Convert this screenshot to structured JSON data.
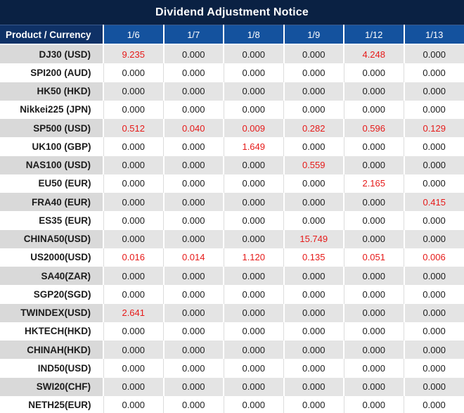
{
  "title": "Dividend Adjustment Notice",
  "colors": {
    "title_bar_bg": "#0a2143",
    "product_header_bg": "#0f3166",
    "date_header_bg": "#14529e",
    "stripe_name_bg": "#d9d9d9",
    "stripe_value_bg": "#e4e4e4",
    "adjustment_red": "#e61a19",
    "text_dark": "#1c1c1c",
    "header_text": "#ffffff"
  },
  "table": {
    "product_header": "Product / Currency",
    "date_columns": [
      "1/6",
      "1/7",
      "1/8",
      "1/9",
      "1/12",
      "1/13"
    ],
    "rows": [
      {
        "name": "DJ30 (USD)",
        "values": [
          "9.235",
          "0.000",
          "0.000",
          "0.000",
          "4.248",
          "0.000"
        ]
      },
      {
        "name": "SPI200 (AUD)",
        "values": [
          "0.000",
          "0.000",
          "0.000",
          "0.000",
          "0.000",
          "0.000"
        ]
      },
      {
        "name": "HK50 (HKD)",
        "values": [
          "0.000",
          "0.000",
          "0.000",
          "0.000",
          "0.000",
          "0.000"
        ]
      },
      {
        "name": "Nikkei225 (JPN)",
        "values": [
          "0.000",
          "0.000",
          "0.000",
          "0.000",
          "0.000",
          "0.000"
        ]
      },
      {
        "name": "SP500 (USD)",
        "values": [
          "0.512",
          "0.040",
          "0.009",
          "0.282",
          "0.596",
          "0.129"
        ]
      },
      {
        "name": "UK100 (GBP)",
        "values": [
          "0.000",
          "0.000",
          "1.649",
          "0.000",
          "0.000",
          "0.000"
        ]
      },
      {
        "name": "NAS100 (USD)",
        "values": [
          "0.000",
          "0.000",
          "0.000",
          "0.559",
          "0.000",
          "0.000"
        ]
      },
      {
        "name": "EU50 (EUR)",
        "values": [
          "0.000",
          "0.000",
          "0.000",
          "0.000",
          "2.165",
          "0.000"
        ]
      },
      {
        "name": "FRA40 (EUR)",
        "values": [
          "0.000",
          "0.000",
          "0.000",
          "0.000",
          "0.000",
          "0.415"
        ]
      },
      {
        "name": "ES35 (EUR)",
        "values": [
          "0.000",
          "0.000",
          "0.000",
          "0.000",
          "0.000",
          "0.000"
        ]
      },
      {
        "name": "CHINA50(USD)",
        "values": [
          "0.000",
          "0.000",
          "0.000",
          "15.749",
          "0.000",
          "0.000"
        ]
      },
      {
        "name": "US2000(USD)",
        "values": [
          "0.016",
          "0.014",
          "1.120",
          "0.135",
          "0.051",
          "0.006"
        ]
      },
      {
        "name": "SA40(ZAR)",
        "values": [
          "0.000",
          "0.000",
          "0.000",
          "0.000",
          "0.000",
          "0.000"
        ]
      },
      {
        "name": "SGP20(SGD)",
        "values": [
          "0.000",
          "0.000",
          "0.000",
          "0.000",
          "0.000",
          "0.000"
        ]
      },
      {
        "name": "TWINDEX(USD)",
        "values": [
          "2.641",
          "0.000",
          "0.000",
          "0.000",
          "0.000",
          "0.000"
        ]
      },
      {
        "name": "HKTECH(HKD)",
        "values": [
          "0.000",
          "0.000",
          "0.000",
          "0.000",
          "0.000",
          "0.000"
        ]
      },
      {
        "name": "CHINAH(HKD)",
        "values": [
          "0.000",
          "0.000",
          "0.000",
          "0.000",
          "0.000",
          "0.000"
        ]
      },
      {
        "name": "IND50(USD)",
        "values": [
          "0.000",
          "0.000",
          "0.000",
          "0.000",
          "0.000",
          "0.000"
        ]
      },
      {
        "name": "SWI20(CHF)",
        "values": [
          "0.000",
          "0.000",
          "0.000",
          "0.000",
          "0.000",
          "0.000"
        ]
      },
      {
        "name": "NETH25(EUR)",
        "values": [
          "0.000",
          "0.000",
          "0.000",
          "0.000",
          "0.000",
          "0.000"
        ]
      }
    ]
  }
}
